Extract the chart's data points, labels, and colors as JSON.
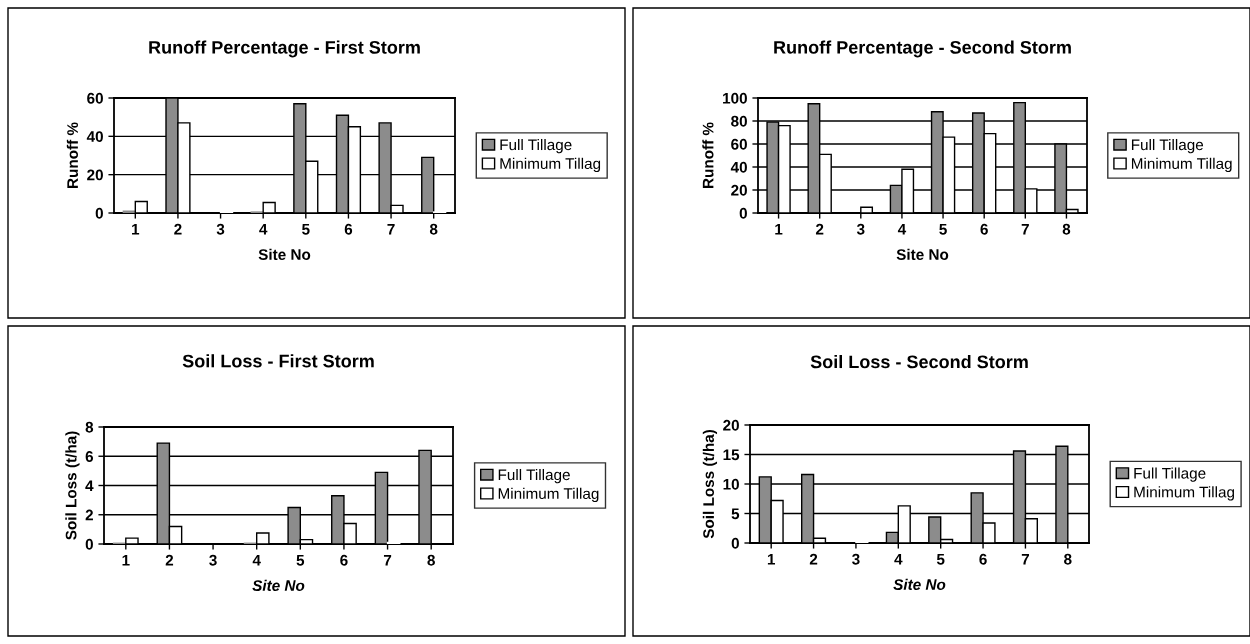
{
  "chart_data": [
    {
      "type": "bar",
      "title": "Runoff Percentage - First Storm",
      "xlabel": "Site No",
      "ylabel": "Runoff %",
      "categories": [
        "1",
        "2",
        "3",
        "4",
        "5",
        "6",
        "7",
        "8"
      ],
      "series": [
        {
          "name": "Full Tillage",
          "color": "#8c8c8c",
          "values": [
            1,
            60,
            0,
            0.5,
            57,
            51,
            47,
            29
          ]
        },
        {
          "name": "Minimum Tillag",
          "color": "#ffffff",
          "values": [
            6,
            47,
            0.5,
            5.5,
            27,
            45,
            4,
            0.5
          ]
        }
      ],
      "ylim": [
        0,
        60
      ],
      "yticks": [
        0,
        20,
        40,
        60
      ],
      "grid": "y",
      "legend": "right"
    },
    {
      "type": "bar",
      "title": "Runoff Percentage - Second Storm",
      "xlabel": "Site No",
      "ylabel": "Runoff %",
      "categories": [
        "1",
        "2",
        "3",
        "4",
        "5",
        "6",
        "7",
        "8"
      ],
      "series": [
        {
          "name": "Full Tillage",
          "color": "#8c8c8c",
          "values": [
            79,
            95,
            0,
            24,
            88,
            87,
            96,
            60
          ]
        },
        {
          "name": "Minimum Tillag",
          "color": "#ffffff",
          "values": [
            76,
            51,
            5,
            38,
            66,
            69,
            21,
            3
          ]
        }
      ],
      "ylim": [
        0,
        100
      ],
      "yticks": [
        0,
        20,
        40,
        60,
        80,
        100
      ],
      "grid": "y",
      "legend": "right"
    },
    {
      "type": "bar",
      "title": "Soil Loss - First Storm",
      "xlabel": "Site No",
      "ylabel": "Soil Loss (t/ha)",
      "categories": [
        "1",
        "2",
        "3",
        "4",
        "5",
        "6",
        "7",
        "8"
      ],
      "series": [
        {
          "name": "Full Tillage",
          "color": "#8c8c8c",
          "values": [
            0.05,
            6.9,
            0,
            0.05,
            2.5,
            3.3,
            4.9,
            6.4
          ]
        },
        {
          "name": "Minimum Tillag",
          "color": "#ffffff",
          "values": [
            0.4,
            1.2,
            0,
            0.75,
            0.3,
            1.4,
            0.1,
            0
          ]
        }
      ],
      "ylim": [
        0,
        8
      ],
      "yticks": [
        0,
        2,
        4,
        6,
        8
      ],
      "grid": "y",
      "legend": "right"
    },
    {
      "type": "bar",
      "title": "Soil Loss - Second Storm",
      "xlabel": "Site No",
      "ylabel": "Soil Loss (t/ha)",
      "categories": [
        "1",
        "2",
        "3",
        "4",
        "5",
        "6",
        "7",
        "8"
      ],
      "series": [
        {
          "name": "Full Tillage",
          "color": "#8c8c8c",
          "values": [
            11.2,
            11.6,
            0,
            1.8,
            4.4,
            8.5,
            15.6,
            16.4
          ]
        },
        {
          "name": "Minimum Tillag",
          "color": "#ffffff",
          "values": [
            7.2,
            0.8,
            0.2,
            6.3,
            0.6,
            3.4,
            4.1,
            0
          ]
        }
      ],
      "ylim": [
        0,
        20
      ],
      "yticks": [
        0,
        5,
        10,
        15,
        20
      ],
      "grid": "y",
      "legend": "right"
    }
  ]
}
